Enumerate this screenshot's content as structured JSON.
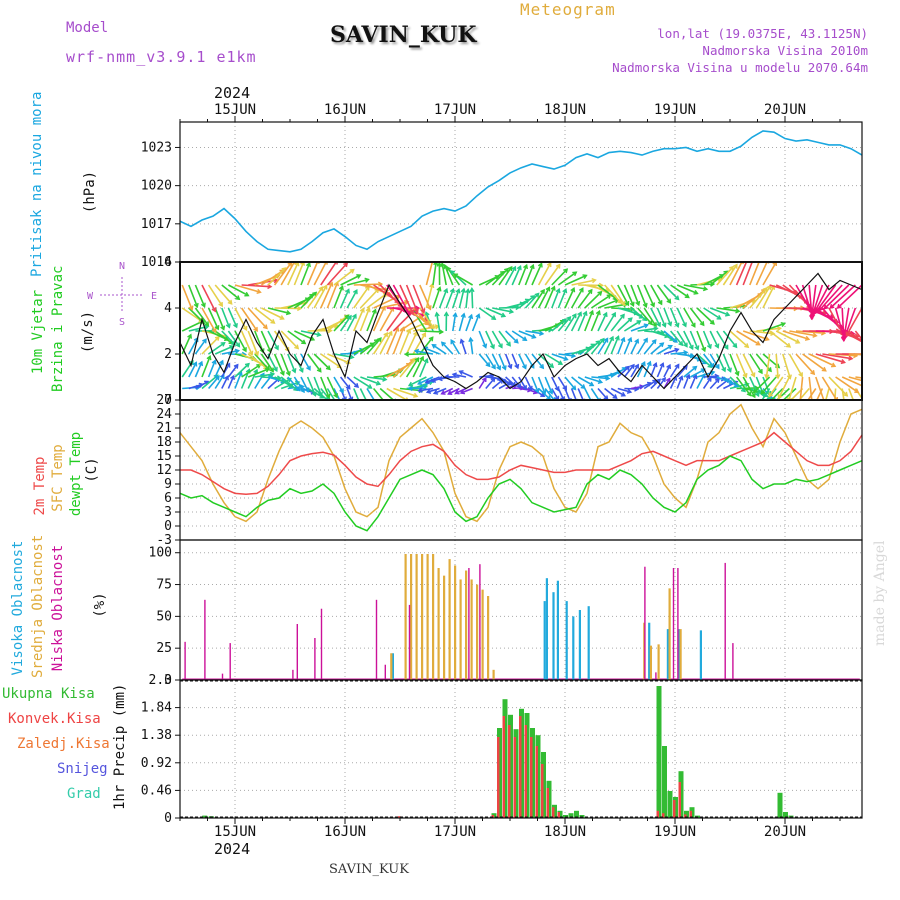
{
  "header": {
    "model_label": "Model",
    "model_name": "wrf-nmm_v3.9.1 e1km",
    "station": "SAVIN_KUK",
    "product": "Meteogram",
    "location_lines": [
      "lon,lat (19.0375E, 43.1125N)",
      "Nadmorska Visina 2010m",
      "Nadmorska Visina u modelu 2070.64m"
    ],
    "year_top": "2024",
    "year_bottom": "2024",
    "footer_station": "SAVIN_KUK",
    "credit": "made by Angel"
  },
  "colors": {
    "pressure": "#1aa7e0",
    "temp2m": "#ee4a4a",
    "sfc_temp": "#e0ac3c",
    "dewpt": "#22cc22",
    "high_cloud": "#22aadd",
    "mid_cloud": "#e0ac3c",
    "low_cloud": "#cc1199",
    "total_precip": "#33bb33",
    "conv_precip": "#ee4444",
    "frozen_precip": "#ee7733",
    "snow": "#5555dd",
    "graupel": "#33ccaa",
    "wind_legend": "#aa55cc",
    "title_orange": "#e0ac3c",
    "location_purple": "#a64dcc"
  },
  "chart_data": [
    {
      "type": "line",
      "title": "Pritisak na nivou mora",
      "ylabel": "(hPa)",
      "x_ticks": [
        "15JUN",
        "16JUN",
        "17JUN",
        "18JUN",
        "19JUN",
        "20JUN"
      ],
      "x_tick_days": [
        0.5,
        1.5,
        2.5,
        3.5,
        4.5,
        5.5
      ],
      "xlim": [
        0,
        6.2
      ],
      "ylim": [
        1014,
        1025
      ],
      "y_ticks": [
        "1014",
        "1017",
        "1020",
        "1023"
      ],
      "y_tick_values": [
        1014,
        1017,
        1020,
        1023
      ],
      "grid": true,
      "series": [
        {
          "name": "Pritisak na nivou mora",
          "x": [
            0,
            0.1,
            0.2,
            0.3,
            0.4,
            0.5,
            0.6,
            0.7,
            0.8,
            0.9,
            1.0,
            1.1,
            1.2,
            1.3,
            1.4,
            1.5,
            1.6,
            1.7,
            1.8,
            1.9,
            2.0,
            2.1,
            2.2,
            2.3,
            2.4,
            2.5,
            2.6,
            2.7,
            2.8,
            2.9,
            3.0,
            3.1,
            3.2,
            3.3,
            3.4,
            3.5,
            3.6,
            3.7,
            3.8,
            3.9,
            4.0,
            4.1,
            4.2,
            4.3,
            4.4,
            4.5,
            4.6,
            4.7,
            4.8,
            4.9,
            5.0,
            5.1,
            5.2,
            5.3,
            5.4,
            5.5,
            5.6,
            5.7,
            5.8,
            5.9,
            6.0,
            6.1,
            6.2
          ],
          "values": [
            1017.2,
            1016.8,
            1017.3,
            1017.6,
            1018.2,
            1017.4,
            1016.4,
            1015.6,
            1015.0,
            1014.9,
            1014.8,
            1015.0,
            1015.6,
            1016.3,
            1016.6,
            1016.0,
            1015.3,
            1015.0,
            1015.6,
            1016.0,
            1016.4,
            1016.8,
            1017.6,
            1018.0,
            1018.2,
            1018.0,
            1018.4,
            1019.2,
            1019.9,
            1020.4,
            1021.0,
            1021.4,
            1021.7,
            1021.5,
            1021.3,
            1021.6,
            1022.2,
            1022.5,
            1022.2,
            1022.6,
            1022.7,
            1022.6,
            1022.4,
            1022.7,
            1022.9,
            1022.9,
            1023.0,
            1022.7,
            1022.9,
            1022.7,
            1022.7,
            1023.1,
            1023.8,
            1024.3,
            1024.2,
            1023.7,
            1023.5,
            1023.6,
            1023.4,
            1023.2,
            1023.2,
            1022.9,
            1022.4
          ]
        }
      ]
    },
    {
      "type": "line",
      "title": "10m Vjetar Brzina i Pravac",
      "ylabel": "(m/s)",
      "xlim": [
        0,
        6.2
      ],
      "ylim": [
        0,
        6
      ],
      "y_ticks": [
        "0",
        "2",
        "4",
        "6"
      ],
      "y_tick_values": [
        0,
        2,
        4,
        6
      ],
      "grid": true,
      "compass_labels": [
        "N",
        "S",
        "W",
        "E"
      ],
      "barb_rows_ms": [
        0.5,
        1,
        2,
        3,
        4,
        5
      ],
      "series": [
        {
          "name": "brzina",
          "x": [
            0,
            0.1,
            0.2,
            0.3,
            0.4,
            0.5,
            0.6,
            0.7,
            0.8,
            0.9,
            1.0,
            1.1,
            1.2,
            1.3,
            1.4,
            1.5,
            1.6,
            1.7,
            1.8,
            1.9,
            2.0,
            2.1,
            2.2,
            2.3,
            2.4,
            2.5,
            2.6,
            2.7,
            2.8,
            2.9,
            3.0,
            3.1,
            3.2,
            3.3,
            3.4,
            3.5,
            3.6,
            3.7,
            3.8,
            3.9,
            4.0,
            4.1,
            4.2,
            4.3,
            4.4,
            4.5,
            4.6,
            4.7,
            4.8,
            4.9,
            5.0,
            5.1,
            5.2,
            5.3,
            5.4,
            5.5,
            5.6,
            5.7,
            5.8,
            5.9,
            6.0,
            6.1,
            6.2
          ],
          "values": [
            2.5,
            1.5,
            3.5,
            2.0,
            1.2,
            2.5,
            3.5,
            2.5,
            1.8,
            3.0,
            2.0,
            1.5,
            2.8,
            3.5,
            2.0,
            1.0,
            3.0,
            2.5,
            3.8,
            5.0,
            4.2,
            3.5,
            2.5,
            1.5,
            1.0,
            0.8,
            0.5,
            0.8,
            1.2,
            1.0,
            0.5,
            0.8,
            1.5,
            2.0,
            1.0,
            1.5,
            1.8,
            2.0,
            1.5,
            1.8,
            1.2,
            0.8,
            1.5,
            1.0,
            0.5,
            1.0,
            1.5,
            2.0,
            1.0,
            1.8,
            3.0,
            3.8,
            3.0,
            2.5,
            3.5,
            4.0,
            4.5,
            5.0,
            5.5,
            4.8,
            5.2,
            5.0,
            4.8
          ]
        }
      ]
    },
    {
      "type": "line",
      "title": "2m Temp / SFC Temp / dewpt Temp",
      "ylabel": "(C)",
      "xlim": [
        0,
        6.2
      ],
      "ylim": [
        -3,
        27
      ],
      "y_ticks": [
        "-3",
        "0",
        "3",
        "6",
        "9",
        "12",
        "15",
        "18",
        "21",
        "24",
        "27"
      ],
      "y_tick_values": [
        -3,
        0,
        3,
        6,
        9,
        12,
        15,
        18,
        21,
        24,
        27
      ],
      "grid": true,
      "series": [
        {
          "name": "2m Temp",
          "x": [
            0,
            0.1,
            0.2,
            0.3,
            0.4,
            0.5,
            0.6,
            0.7,
            0.8,
            0.9,
            1.0,
            1.1,
            1.2,
            1.3,
            1.4,
            1.5,
            1.6,
            1.7,
            1.8,
            1.9,
            2.0,
            2.1,
            2.2,
            2.3,
            2.4,
            2.5,
            2.6,
            2.7,
            2.8,
            2.9,
            3.0,
            3.1,
            3.2,
            3.3,
            3.4,
            3.5,
            3.6,
            3.7,
            3.8,
            3.9,
            4.0,
            4.1,
            4.2,
            4.3,
            4.4,
            4.5,
            4.6,
            4.7,
            4.8,
            4.9,
            5.0,
            5.1,
            5.2,
            5.3,
            5.4,
            5.5,
            5.6,
            5.7,
            5.8,
            5.9,
            6.0,
            6.1,
            6.2
          ],
          "values": [
            12,
            12,
            11,
            9.5,
            8,
            7,
            6.8,
            7,
            8.5,
            11,
            14,
            15,
            15.5,
            15.8,
            15.2,
            13,
            10.5,
            9,
            8.5,
            11,
            14,
            16,
            17,
            17.5,
            16,
            13,
            11,
            10,
            10,
            10.5,
            12,
            13,
            12.5,
            12,
            11.5,
            11.5,
            12,
            12,
            12,
            12,
            13,
            14,
            15.5,
            16,
            15,
            14,
            13,
            14,
            14,
            14,
            15,
            16,
            17,
            18,
            20,
            18,
            16,
            14,
            13,
            13,
            14,
            16,
            19.5
          ]
        },
        {
          "name": "SFC Temp",
          "x": [
            0,
            0.1,
            0.2,
            0.3,
            0.4,
            0.5,
            0.6,
            0.7,
            0.8,
            0.9,
            1.0,
            1.1,
            1.2,
            1.3,
            1.4,
            1.5,
            1.6,
            1.7,
            1.8,
            1.9,
            2.0,
            2.1,
            2.2,
            2.3,
            2.4,
            2.5,
            2.6,
            2.7,
            2.8,
            2.9,
            3.0,
            3.1,
            3.2,
            3.3,
            3.4,
            3.5,
            3.6,
            3.7,
            3.8,
            3.9,
            4.0,
            4.1,
            4.2,
            4.3,
            4.4,
            4.5,
            4.6,
            4.7,
            4.8,
            4.9,
            5.0,
            5.1,
            5.2,
            5.3,
            5.4,
            5.5,
            5.6,
            5.7,
            5.8,
            5.9,
            6.0,
            6.1,
            6.2
          ],
          "values": [
            20,
            17,
            14,
            9,
            5,
            2,
            1,
            3,
            10,
            16,
            21,
            22.5,
            21,
            19,
            15,
            8,
            3,
            2,
            4,
            14,
            19,
            21,
            23,
            20,
            16,
            7,
            2,
            1,
            4,
            12,
            17,
            18,
            17,
            15,
            8,
            4,
            3,
            7,
            17,
            18,
            22,
            20,
            19,
            15,
            9,
            6,
            4,
            10,
            18,
            20,
            24,
            26,
            21,
            17,
            23,
            20,
            15,
            10,
            8,
            10,
            18,
            24,
            25
          ]
        },
        {
          "name": "dewpt Temp",
          "x": [
            0,
            0.1,
            0.2,
            0.3,
            0.4,
            0.5,
            0.6,
            0.7,
            0.8,
            0.9,
            1.0,
            1.1,
            1.2,
            1.3,
            1.4,
            1.5,
            1.6,
            1.7,
            1.8,
            1.9,
            2.0,
            2.1,
            2.2,
            2.3,
            2.4,
            2.5,
            2.6,
            2.7,
            2.8,
            2.9,
            3.0,
            3.1,
            3.2,
            3.3,
            3.4,
            3.5,
            3.6,
            3.7,
            3.8,
            3.9,
            4.0,
            4.1,
            4.2,
            4.3,
            4.4,
            4.5,
            4.6,
            4.7,
            4.8,
            4.9,
            5.0,
            5.1,
            5.2,
            5.3,
            5.4,
            5.5,
            5.6,
            5.7,
            5.8,
            5.9,
            6.0,
            6.1,
            6.2
          ],
          "values": [
            7,
            6,
            6.5,
            5,
            4,
            3,
            2,
            4,
            5.5,
            6,
            8,
            7,
            7.5,
            9,
            7,
            3,
            0,
            -1,
            2,
            6,
            10,
            11,
            12,
            11,
            8,
            3,
            1,
            2,
            6,
            9,
            10,
            8,
            5,
            4,
            3,
            3.5,
            4,
            9,
            11,
            10,
            12,
            11,
            9,
            6,
            4,
            3,
            5,
            10,
            12,
            13,
            15,
            14,
            10,
            8,
            9,
            9,
            10,
            9.5,
            10,
            11,
            12,
            13,
            14
          ]
        }
      ]
    },
    {
      "type": "bar",
      "title": "Visoka Oblacnost / Srednja Oblacnost / Niska Oblacnost",
      "ylabel": "(%)",
      "xlim": [
        0,
        6.2
      ],
      "ylim": [
        0,
        110
      ],
      "y_ticks": [
        "0",
        "25",
        "50",
        "75",
        "100"
      ],
      "y_tick_values": [
        0,
        25,
        50,
        75,
        100
      ],
      "grid": true,
      "series": [
        {
          "name": "Visoka Oblacnost",
          "x": [
            1.92,
            3.3,
            3.32,
            3.38,
            3.42,
            3.5,
            3.56,
            3.62,
            3.7,
            4.25,
            4.42,
            4.52,
            4.72
          ],
          "values": [
            21,
            62,
            80,
            69,
            78,
            62,
            50,
            55,
            58,
            45,
            40,
            40,
            39
          ]
        },
        {
          "name": "Srednja Oblacnost",
          "x": [
            1.92,
            2.05,
            2.1,
            2.15,
            2.2,
            2.25,
            2.3,
            2.35,
            2.4,
            2.45,
            2.5,
            2.55,
            2.6,
            2.65,
            2.7,
            2.75,
            2.8,
            2.85,
            4.22,
            4.28,
            4.35,
            4.45,
            4.55
          ],
          "values": [
            21,
            99,
            99,
            99,
            99,
            99,
            99,
            88,
            82,
            95,
            90,
            79,
            86,
            79,
            75,
            71,
            66,
            8,
            45,
            27,
            28,
            72,
            40
          ]
        },
        {
          "name": "Niska Oblacnost",
          "x": [
            0.04,
            0.22,
            0.38,
            0.45,
            1.02,
            1.06,
            1.22,
            1.28,
            1.78,
            1.86,
            2.08,
            2.62,
            2.72,
            4.22,
            4.32,
            4.48,
            4.52,
            4.95,
            5.02
          ],
          "values": [
            30,
            63,
            5,
            29,
            8,
            44,
            33,
            56,
            63,
            12,
            59,
            88,
            91,
            89,
            6,
            88,
            88,
            92,
            29
          ]
        }
      ]
    },
    {
      "type": "bar",
      "title": "1hr Precip",
      "ylabel": "1hr Precip (mm)",
      "legend": [
        "Ukupna Kisa",
        "Konvek.Kisa",
        "Zaledj.Kisa",
        "Snijeg",
        "Grad"
      ],
      "xlim": [
        0,
        6.2
      ],
      "ylim": [
        0,
        2.3
      ],
      "y_ticks": [
        "0",
        "0.46",
        "0.92",
        "1.38",
        "1.84",
        "2.3"
      ],
      "y_tick_values": [
        0,
        0.46,
        0.92,
        1.38,
        1.84,
        2.3
      ],
      "grid": true,
      "series": [
        {
          "name": "Ukupna Kisa",
          "x": [
            0.22,
            0.28,
            2.85,
            2.9,
            2.95,
            3.0,
            3.05,
            3.1,
            3.15,
            3.2,
            3.25,
            3.3,
            3.35,
            3.4,
            3.45,
            3.5,
            3.55,
            3.6,
            3.65,
            4.35,
            4.4,
            4.45,
            4.5,
            4.55,
            4.6,
            4.65,
            4.7,
            5.45,
            5.5,
            5.55
          ],
          "values": [
            0.04,
            0.03,
            0.08,
            1.5,
            1.98,
            1.72,
            1.48,
            1.82,
            1.75,
            1.5,
            1.38,
            1.1,
            0.62,
            0.22,
            0.12,
            0.05,
            0.08,
            0.12,
            0.05,
            2.2,
            1.2,
            0.45,
            0.35,
            0.78,
            0.12,
            0.18,
            0.04,
            0.42,
            0.1,
            0.04
          ]
        },
        {
          "name": "Konvek.Kisa",
          "x": [
            2.0,
            2.85,
            2.9,
            2.95,
            3.0,
            3.05,
            3.1,
            3.15,
            3.2,
            3.25,
            3.3,
            3.35,
            3.4,
            3.45,
            4.35,
            4.4,
            4.5,
            4.55,
            4.6,
            4.65
          ],
          "values": [
            0.03,
            0.05,
            1.35,
            1.7,
            1.55,
            1.35,
            1.7,
            1.55,
            1.35,
            1.2,
            0.9,
            0.5,
            0.18,
            0.1,
            0.12,
            0.08,
            0.3,
            0.6,
            0.06,
            0.12
          ]
        }
      ]
    }
  ]
}
